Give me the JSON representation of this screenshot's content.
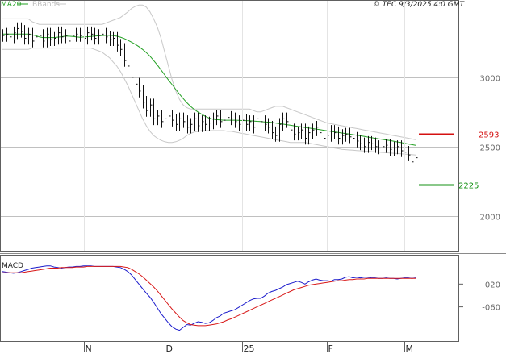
{
  "header": {
    "ma_label": "MA20",
    "bbands_label": "BBands",
    "copyright": "© TEC 9/3/2025 4:0 GMT"
  },
  "macd_label": "MACD",
  "colors": {
    "ma20": "#22a022",
    "bbands": "#c8c8c8",
    "resistance": "#d41111",
    "support": "#149114",
    "macd": "#1c1ccc",
    "signal": "#d81818",
    "bars": "#111111",
    "frame": "#606060",
    "grid": "#c0c0c0",
    "axis_text": "#666666"
  },
  "chart_data": [
    {
      "type": "ohlc",
      "name": "price",
      "x_ticks": [
        "N",
        "D",
        "25",
        "F",
        "M"
      ],
      "y_ticks": [
        2000,
        2500,
        3000
      ],
      "y_tick_labels": [
        "2000",
        "2500",
        "3000"
      ],
      "ylim": [
        1750,
        3550
      ],
      "grid": true,
      "legend": [
        "MA20",
        "BBands"
      ],
      "levels": [
        {
          "label": "2593",
          "value": 2593,
          "role": "resistance"
        },
        {
          "label": "2225",
          "value": 2225,
          "role": "support"
        }
      ],
      "closes": [
        3300,
        3310,
        3290,
        3320,
        3350,
        3330,
        3280,
        3310,
        3260,
        3290,
        3300,
        3260,
        3310,
        3270,
        3280,
        3320,
        3290,
        3300,
        3260,
        3300,
        3310,
        3300,
        3280,
        3320,
        3310,
        3280,
        3300,
        3310,
        3290,
        3270,
        3280,
        3230,
        3200,
        3120,
        3080,
        3000,
        2950,
        2900,
        2820,
        2760,
        2800,
        2700,
        2720,
        2680,
        2700,
        2720,
        2690,
        2660,
        2700,
        2680,
        2640,
        2660,
        2700,
        2650,
        2680,
        2660,
        2670,
        2700,
        2720,
        2680,
        2690,
        2710,
        2700,
        2680,
        2660,
        2690,
        2660,
        2680,
        2640,
        2700,
        2680,
        2660,
        2640,
        2600,
        2580,
        2660,
        2700,
        2680,
        2620,
        2590,
        2600,
        2620,
        2560,
        2600,
        2620,
        2640,
        2600,
        2560,
        2580,
        2610,
        2600,
        2560,
        2580,
        2590,
        2570,
        2560,
        2540,
        2520,
        2500,
        2530,
        2520,
        2500,
        2490,
        2500,
        2510,
        2480,
        2490,
        2500,
        2470,
        2460,
        2440,
        2390,
        2420
      ],
      "ma20": [
        3310,
        3310,
        3310,
        3310,
        3310,
        3310,
        3310,
        3310,
        3305,
        3300,
        3290,
        3285,
        3285,
        3285,
        3285,
        3288,
        3291,
        3295,
        3295,
        3293,
        3290,
        3287,
        3289,
        3291,
        3293,
        3296,
        3298,
        3300,
        3301,
        3302,
        3300,
        3295,
        3288,
        3278,
        3266,
        3252,
        3237,
        3220,
        3200,
        3177,
        3151,
        3120,
        3087,
        3052,
        3016,
        2980,
        2946,
        2911,
        2878,
        2846,
        2816,
        2790,
        2768,
        2749,
        2733,
        2718,
        2706,
        2698,
        2694,
        2692,
        2690,
        2690,
        2690,
        2690,
        2689,
        2688,
        2687,
        2686,
        2684,
        2682,
        2680,
        2678,
        2676,
        2674,
        2670,
        2666,
        2662,
        2658,
        2654,
        2650,
        2646,
        2642,
        2638,
        2634,
        2630,
        2626,
        2622,
        2618,
        2614,
        2610,
        2606,
        2602,
        2598,
        2594,
        2590,
        2586,
        2582,
        2578,
        2574,
        2569,
        2564,
        2560,
        2556,
        2552,
        2548,
        2544,
        2539,
        2534,
        2529,
        2524,
        2519,
        2514,
        2509
      ],
      "bb_upper": [
        3420,
        3420,
        3420,
        3420,
        3420,
        3420,
        3420,
        3420,
        3400,
        3390,
        3380,
        3380,
        3380,
        3380,
        3380,
        3380,
        3380,
        3380,
        3380,
        3380,
        3380,
        3380,
        3380,
        3380,
        3380,
        3380,
        3380,
        3380,
        3390,
        3400,
        3410,
        3420,
        3430,
        3450,
        3470,
        3495,
        3510,
        3520,
        3520,
        3505,
        3470,
        3420,
        3360,
        3280,
        3180,
        3080,
        2980,
        2900,
        2840,
        2800,
        2780,
        2770,
        2770,
        2770,
        2770,
        2770,
        2770,
        2770,
        2770,
        2770,
        2770,
        2770,
        2770,
        2770,
        2770,
        2770,
        2770,
        2770,
        2760,
        2750,
        2750,
        2760,
        2770,
        2780,
        2790,
        2790,
        2790,
        2780,
        2770,
        2760,
        2750,
        2740,
        2730,
        2720,
        2710,
        2700,
        2690,
        2680,
        2670,
        2665,
        2660,
        2655,
        2650,
        2645,
        2640,
        2635,
        2630,
        2625,
        2620,
        2615,
        2610,
        2605,
        2600,
        2595,
        2590,
        2585,
        2580,
        2575,
        2570,
        2565,
        2560,
        2555,
        2550
      ],
      "bb_lower": [
        3200,
        3200,
        3200,
        3200,
        3200,
        3200,
        3200,
        3200,
        3210,
        3210,
        3210,
        3210,
        3210,
        3210,
        3210,
        3210,
        3210,
        3210,
        3210,
        3210,
        3210,
        3210,
        3210,
        3210,
        3210,
        3200,
        3190,
        3180,
        3160,
        3140,
        3110,
        3080,
        3040,
        2990,
        2940,
        2880,
        2820,
        2760,
        2700,
        2650,
        2610,
        2580,
        2560,
        2545,
        2535,
        2530,
        2530,
        2535,
        2545,
        2560,
        2580,
        2595,
        2605,
        2610,
        2615,
        2615,
        2615,
        2615,
        2615,
        2615,
        2615,
        2610,
        2610,
        2605,
        2600,
        2595,
        2590,
        2585,
        2580,
        2575,
        2570,
        2565,
        2560,
        2555,
        2550,
        2545,
        2540,
        2535,
        2530,
        2530,
        2530,
        2530,
        2530,
        2525,
        2520,
        2515,
        2510,
        2505,
        2500,
        2495,
        2490,
        2485,
        2480,
        2478,
        2476,
        2474,
        2472,
        2470,
        2468,
        2466,
        2464,
        2462,
        2460,
        2458,
        2456,
        2454,
        2452,
        2450,
        2448,
        2446,
        2444,
        2442,
        2440
      ]
    },
    {
      "type": "line",
      "name": "MACD",
      "y_ticks": [
        -20,
        -60
      ],
      "y_tick_labels": [
        "-020",
        "-060"
      ],
      "ylim": [
        -120,
        30
      ],
      "series": [
        {
          "name": "MACD",
          "values": [
            2,
            1,
            0,
            -1,
            0,
            2,
            4,
            6,
            8,
            9,
            10,
            11,
            12,
            12,
            10,
            9,
            8,
            9,
            10,
            10,
            11,
            11,
            12,
            12,
            12,
            11,
            11,
            11,
            11,
            11,
            11,
            10,
            9,
            6,
            2,
            -4,
            -12,
            -20,
            -28,
            -36,
            -43,
            -52,
            -62,
            -72,
            -80,
            -88,
            -95,
            -99,
            -101,
            -96,
            -91,
            -92,
            -89,
            -86,
            -87,
            -89,
            -88,
            -84,
            -79,
            -76,
            -71,
            -69,
            -67,
            -65,
            -61,
            -57,
            -53,
            -49,
            -46,
            -45,
            -45,
            -41,
            -36,
            -33,
            -31,
            -28,
            -25,
            -21,
            -19,
            -17,
            -15,
            -17,
            -20,
            -16,
            -13,
            -11,
            -13,
            -14,
            -14,
            -15,
            -12,
            -12,
            -11,
            -8,
            -7,
            -9,
            -8,
            -9,
            -8,
            -8,
            -9,
            -9,
            -10,
            -10,
            -9,
            -10,
            -10,
            -11,
            -10,
            -9,
            -9,
            -10,
            -9
          ]
        },
        {
          "name": "Signal",
          "values": [
            0,
            0,
            0,
            0,
            0,
            0,
            1,
            2,
            3,
            4,
            5,
            6,
            7,
            8,
            8,
            8,
            9,
            9,
            9,
            9,
            10,
            10,
            10,
            11,
            11,
            11,
            11,
            11,
            11,
            11,
            11,
            11,
            11,
            10,
            9,
            6,
            2,
            -2,
            -7,
            -13,
            -19,
            -25,
            -32,
            -40,
            -48,
            -56,
            -64,
            -71,
            -78,
            -84,
            -88,
            -91,
            -92,
            -93,
            -93,
            -93,
            -92,
            -91,
            -90,
            -88,
            -86,
            -83,
            -81,
            -78,
            -75,
            -72,
            -69,
            -66,
            -63,
            -60,
            -57,
            -54,
            -51,
            -48,
            -45,
            -42,
            -39,
            -36,
            -33,
            -30,
            -28,
            -26,
            -24,
            -22,
            -21,
            -20,
            -19,
            -18,
            -17,
            -16,
            -15,
            -14,
            -14,
            -13,
            -12,
            -12,
            -11,
            -11,
            -11,
            -10,
            -10,
            -10,
            -10,
            -10,
            -10,
            -10,
            -10,
            -10,
            -10,
            -10,
            -10,
            -10,
            -10
          ]
        }
      ]
    }
  ]
}
